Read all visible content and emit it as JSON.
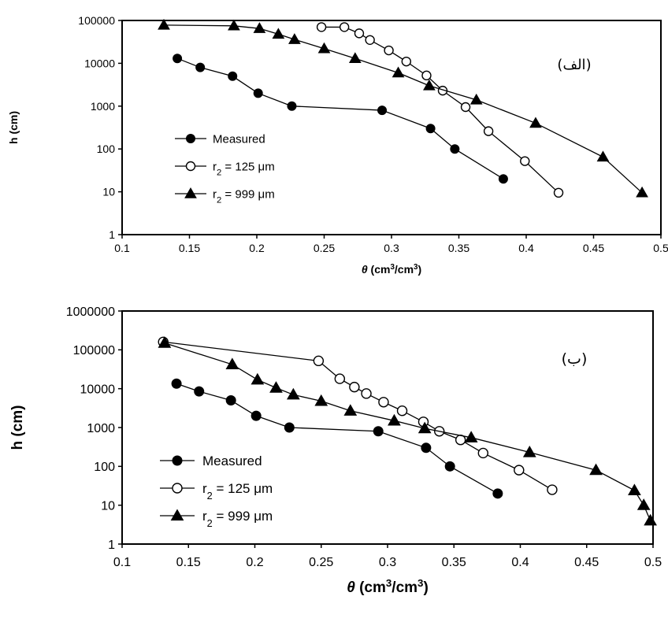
{
  "chart_data": [
    {
      "type": "line",
      "panel_label": "(الف)",
      "xlabel": "θ (cm³/cm³)",
      "ylabel": "h (cm)",
      "xlim": [
        0.1,
        0.5
      ],
      "ylim": [
        1,
        100000
      ],
      "yscale": "log",
      "x_ticks": [
        "0.1",
        "0.15",
        "0.2",
        "0.25",
        "0.3",
        "0.35",
        "0.4",
        "0.45",
        "0.5"
      ],
      "y_ticks": [
        "1",
        "10",
        "100",
        "1000",
        "10000",
        "100000"
      ],
      "legend_position": "lower-left",
      "series": [
        {
          "name": "Measured",
          "marker": "filled-circle",
          "x": [
            0.141,
            0.158,
            0.182,
            0.201,
            0.226,
            0.293,
            0.329,
            0.347,
            0.383
          ],
          "y": [
            13000,
            8000,
            5000,
            2000,
            1000,
            800,
            300,
            100,
            20
          ]
        },
        {
          "name": "r₂ = 125 μm",
          "marker": "open-circle",
          "x": [
            0.248,
            0.265,
            0.276,
            0.284,
            0.298,
            0.311,
            0.326,
            0.338,
            0.355,
            0.372,
            0.399,
            0.424
          ],
          "y": [
            70000,
            70000,
            50000,
            35000,
            20000,
            11000,
            5200,
            2300,
            950,
            260,
            52,
            9.5
          ]
        },
        {
          "name": "r₂ = 999 μm",
          "marker": "filled-triangle",
          "x": [
            0.131,
            0.183,
            0.202,
            0.216,
            0.228,
            0.25,
            0.273,
            0.305,
            0.328,
            0.363,
            0.407,
            0.457,
            0.486
          ],
          "y": [
            78000,
            75000,
            65000,
            48000,
            36000,
            22000,
            13000,
            6000,
            3000,
            1400,
            400,
            65,
            9.5
          ]
        }
      ]
    },
    {
      "type": "line",
      "panel_label": "(ب)",
      "xlabel": "θ (cm³/cm³)",
      "ylabel": "h (cm)",
      "xlim": [
        0.1,
        0.5
      ],
      "ylim": [
        1,
        1000000
      ],
      "yscale": "log",
      "x_ticks": [
        "0.1",
        "0.15",
        "0.2",
        "0.25",
        "0.3",
        "0.35",
        "0.4",
        "0.45",
        "0.5"
      ],
      "y_ticks": [
        "1",
        "10",
        "100",
        "1000",
        "10000",
        "100000",
        "1000000"
      ],
      "legend_position": "lower-left",
      "series": [
        {
          "name": "Measured",
          "marker": "filled-circle",
          "x": [
            0.141,
            0.158,
            0.182,
            0.201,
            0.226,
            0.293,
            0.329,
            0.347,
            0.383
          ],
          "y": [
            13500,
            8500,
            5000,
            2000,
            1000,
            800,
            300,
            100,
            20
          ]
        },
        {
          "name": "r₂ = 125 μm",
          "marker": "open-circle",
          "x": [
            0.131,
            0.248,
            0.264,
            0.275,
            0.284,
            0.297,
            0.311,
            0.327,
            0.339,
            0.355,
            0.372,
            0.399,
            0.424
          ],
          "y": [
            160000,
            52000,
            18000,
            11000,
            7500,
            4500,
            2700,
            1400,
            800,
            480,
            220,
            80,
            25
          ]
        },
        {
          "name": "r₂ = 999 μm",
          "marker": "filled-triangle",
          "x": [
            0.132,
            0.183,
            0.202,
            0.216,
            0.229,
            0.25,
            0.272,
            0.305,
            0.328,
            0.363,
            0.407,
            0.457,
            0.486,
            0.493,
            0.498
          ],
          "y": [
            150000,
            42000,
            17000,
            10500,
            7000,
            4800,
            2700,
            1500,
            950,
            550,
            230,
            80,
            24,
            10,
            4
          ]
        }
      ]
    }
  ]
}
